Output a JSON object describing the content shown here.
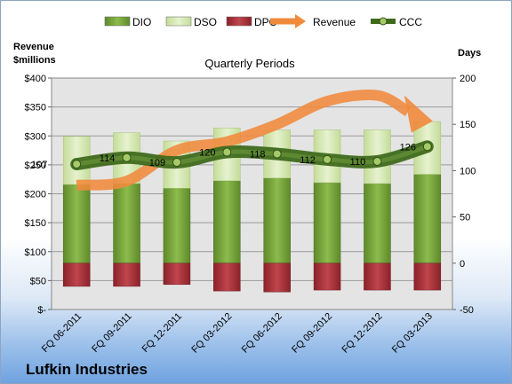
{
  "chart_data": {
    "type": "bar",
    "title": "Quarterly Periods",
    "company": "Lufkin Industries",
    "left_axis": {
      "title_lines": [
        "Revenue",
        "$millions"
      ],
      "ylim": [
        0,
        400
      ],
      "ticks": [
        0,
        50,
        100,
        150,
        200,
        250,
        300,
        350,
        400
      ],
      "tick_labels": [
        "$-",
        "$50",
        "$100",
        "$150",
        "$200",
        "$250",
        "$300",
        "$350",
        "$400"
      ]
    },
    "right_axis": {
      "title": "Days",
      "ylim": [
        -50,
        200
      ],
      "ticks": [
        -50,
        0,
        50,
        100,
        150,
        200
      ],
      "tick_labels": [
        "-50",
        "0",
        "50",
        "100",
        "150",
        "200"
      ]
    },
    "grid": true,
    "legend_position": "top",
    "categories": [
      "FQ 06-2011",
      "FQ 09-2011",
      "FQ 12-2011",
      "FQ 03-2012",
      "FQ 06-2012",
      "FQ 09-2012",
      "FQ 12-2012",
      "FQ 03-2013"
    ],
    "series": [
      {
        "name": "DIO",
        "axis": "right",
        "kind": "bar-stack",
        "color": "#76a33a",
        "values": [
          85,
          86,
          81,
          89,
          92,
          87,
          86,
          96
        ]
      },
      {
        "name": "DSO",
        "axis": "right",
        "kind": "bar-stack",
        "color": "#d5e8b0",
        "values": [
          52,
          55,
          51,
          57,
          52,
          57,
          58,
          57
        ]
      },
      {
        "name": "DPO",
        "axis": "right",
        "kind": "bar-negative",
        "color": "#a8323a",
        "values": [
          -25,
          -25,
          -23,
          -30,
          -31,
          -29,
          -29,
          -29
        ]
      },
      {
        "name": "Revenue",
        "axis": "left",
        "kind": "line-arrow",
        "color": "#f08a3c",
        "values": [
          215,
          222,
          275,
          290,
          320,
          360,
          370,
          330
        ]
      },
      {
        "name": "CCC",
        "axis": "right",
        "kind": "line-marker",
        "color": "#4e7a28",
        "values": [
          107,
          114,
          109,
          120,
          118,
          112,
          110,
          126
        ]
      }
    ]
  }
}
